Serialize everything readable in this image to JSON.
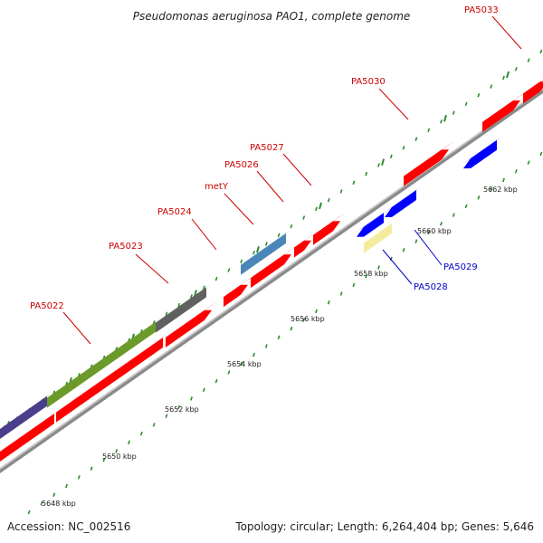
{
  "title": "Pseudomonas aeruginosa PAO1, complete genome",
  "footer": {
    "accession": "Accession: NC_002516",
    "info": "Topology: circular; Length: 6,264,404 bp; Genes: 5,646"
  },
  "colors": {
    "forward_gene": "#ff0000",
    "reverse_gene": "#0000ff",
    "metY": "#4a86b8",
    "PA5028": "#f4ec9c",
    "green_block": "#6b9a2a",
    "gray_block": "#606060",
    "purple_block": "#4a3f8c",
    "backbone": "#999999",
    "ticks": "#2e8b2e",
    "label_forward": "#cc0000",
    "label_reverse": "#0000cc"
  },
  "tick_labels": [
    "5648 kbp",
    "5650 kbp",
    "5652 kbp",
    "5654 kbp",
    "5656 kbp",
    "5658 kbp",
    "5660 kbp",
    "5662 kbp"
  ],
  "gene_labels": [
    {
      "name": "PA5022",
      "strand": "forward"
    },
    {
      "name": "PA5023",
      "strand": "forward"
    },
    {
      "name": "PA5024",
      "strand": "forward"
    },
    {
      "name": "metY",
      "strand": "forward"
    },
    {
      "name": "PA5026",
      "strand": "forward"
    },
    {
      "name": "PA5027",
      "strand": "forward"
    },
    {
      "name": "PA5030",
      "strand": "forward"
    },
    {
      "name": "PA5033",
      "strand": "forward"
    },
    {
      "name": "PA5029",
      "strand": "reverse"
    },
    {
      "name": "PA5028",
      "strand": "reverse"
    }
  ]
}
